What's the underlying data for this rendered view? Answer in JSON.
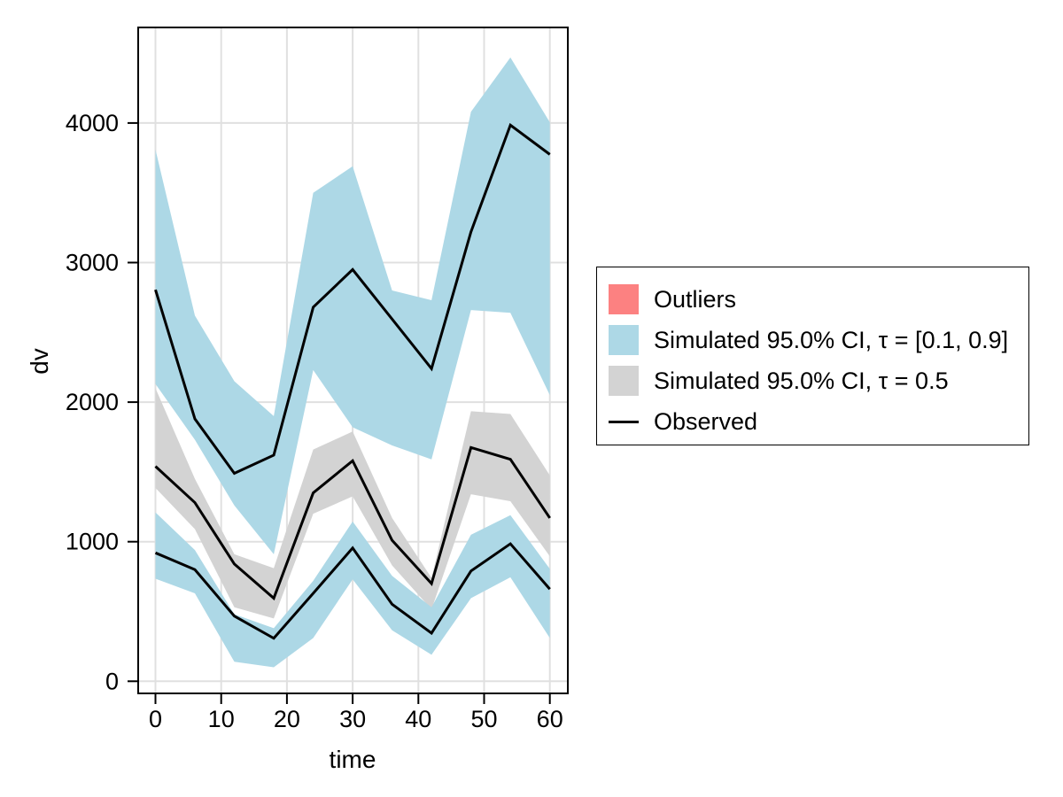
{
  "axes": {
    "x": {
      "label": "time",
      "tick_labels": [
        "0",
        "10",
        "20",
        "30",
        "40",
        "50",
        "60"
      ]
    },
    "y": {
      "label": "dv",
      "tick_labels": [
        "0",
        "1000",
        "2000",
        "3000",
        "4000"
      ]
    }
  },
  "legend": {
    "items": [
      {
        "key": "outliers",
        "label": "Outliers",
        "swatch": "fill",
        "color": "#FC8181"
      },
      {
        "key": "sim-ci-outer",
        "label": "Simulated 95.0% CI, τ = [0.1, 0.9]",
        "swatch": "fill",
        "color": "#ADD8E6"
      },
      {
        "key": "sim-ci-median",
        "label": "Simulated 95.0% CI, τ = 0.5",
        "swatch": "fill",
        "color": "#D3D3D3"
      },
      {
        "key": "observed",
        "label": "Observed",
        "swatch": "line",
        "color": "#000000"
      }
    ]
  },
  "colors": {
    "band_blue": "#ADD8E6",
    "band_gray": "#D3D3D3",
    "outlier_red": "#FC8181",
    "observed_line": "#000000",
    "grid": "#E0E0E0",
    "axis": "#000000",
    "background": "#FFFFFF"
  },
  "chart_data": {
    "type": "area",
    "title": "",
    "xlabel": "time",
    "ylabel": "dv",
    "xlim": [
      -2.6,
      62.7
    ],
    "ylim": [
      -87,
      4685
    ],
    "grid": true,
    "legend_position": "right",
    "x_ticks": [
      0,
      10,
      20,
      30,
      40,
      50,
      60
    ],
    "y_ticks": [
      0,
      1000,
      2000,
      3000,
      4000
    ],
    "x": [
      0,
      6,
      12,
      18,
      24,
      30,
      36,
      42,
      48,
      54,
      60
    ],
    "bands": [
      {
        "name": "Simulated 95.0% CI, τ = [0.1, 0.9] (upper quantile band)",
        "color": "#ADD8E6",
        "upper": [
          3810,
          2620,
          2150,
          1900,
          3500,
          3690,
          2800,
          2730,
          4080,
          4470,
          4005
        ],
        "lower": [
          2130,
          1730,
          1260,
          910,
          2230,
          1820,
          1690,
          1590,
          2660,
          2640,
          2050
        ]
      },
      {
        "name": "Simulated 95.0% CI, τ = 0.5 (median band)",
        "color": "#D3D3D3",
        "upper": [
          2100,
          1450,
          910,
          810,
          1660,
          1790,
          1170,
          740,
          1935,
          1915,
          1475
        ],
        "lower": [
          1385,
          1090,
          530,
          450,
          1200,
          1325,
          830,
          515,
          1340,
          1290,
          895
        ]
      },
      {
        "name": "Simulated 95.0% CI, τ = [0.1, 0.9] (lower quantile band)",
        "color": "#ADD8E6",
        "upper": [
          1210,
          940,
          480,
          380,
          720,
          1145,
          755,
          530,
          1050,
          1190,
          805
        ],
        "lower": [
          735,
          630,
          140,
          100,
          310,
          730,
          365,
          190,
          595,
          745,
          310
        ]
      }
    ],
    "series": [
      {
        "name": "Observed (upper quantile)",
        "color": "#000000",
        "values": [
          2805,
          1880,
          1490,
          1620,
          2680,
          2950,
          2595,
          2240,
          3220,
          3985,
          3775
        ]
      },
      {
        "name": "Observed (median)",
        "color": "#000000",
        "values": [
          1540,
          1280,
          840,
          595,
          1350,
          1580,
          1010,
          700,
          1675,
          1590,
          1170
        ]
      },
      {
        "name": "Observed (lower quantile)",
        "color": "#000000",
        "values": [
          920,
          800,
          467,
          308,
          630,
          955,
          552,
          345,
          790,
          985,
          660
        ]
      }
    ]
  }
}
